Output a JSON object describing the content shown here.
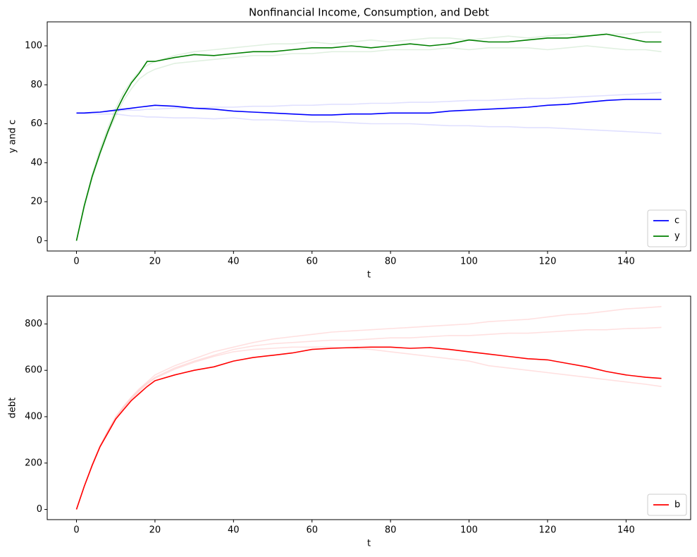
{
  "chart_data": [
    {
      "type": "line",
      "title": "Nonfinancial Income, Consumption, and Debt",
      "xlabel": "t",
      "ylabel": "y and c",
      "x": [
        0,
        2,
        4,
        6,
        8,
        10,
        12,
        14,
        16,
        18,
        20,
        25,
        30,
        35,
        40,
        45,
        50,
        55,
        60,
        65,
        70,
        75,
        80,
        85,
        90,
        95,
        100,
        105,
        110,
        115,
        120,
        125,
        130,
        135,
        140,
        145,
        149
      ],
      "series": [
        {
          "name": "c",
          "color": "#0000ff",
          "alpha": 1,
          "values": [
            65.5,
            65.5,
            65.8,
            66,
            66.5,
            67,
            67.5,
            68,
            68.5,
            69,
            69.5,
            69,
            68,
            67.5,
            66.5,
            66,
            65.5,
            65,
            64.5,
            64.5,
            65,
            65,
            65.5,
            65.5,
            65.5,
            66.5,
            67,
            67.5,
            68,
            68.5,
            69.5,
            70,
            71,
            72,
            72.5,
            72.5,
            72.5
          ]
        },
        {
          "name": "y",
          "color": "#008000",
          "alpha": 1,
          "values": [
            0,
            18,
            33,
            45,
            56,
            66,
            74,
            81,
            86,
            92,
            92,
            94,
            95.5,
            95,
            96,
            97,
            97,
            98,
            99,
            99,
            100,
            99,
            100,
            101,
            100,
            101,
            103,
            102,
            102,
            103,
            104,
            104,
            105,
            106,
            104,
            102,
            102
          ]
        },
        {
          "color": "#0000ff",
          "alpha": 0.12,
          "values": [
            65.5,
            65.4,
            65.3,
            65,
            65,
            65,
            64.5,
            64,
            64,
            63.5,
            63.5,
            63,
            63,
            62.5,
            63,
            62,
            62,
            61.5,
            61,
            61,
            60.5,
            60,
            60,
            60,
            59.5,
            59,
            59,
            58.5,
            58.5,
            58,
            58,
            57.5,
            57,
            56.5,
            56,
            55.5,
            55
          ]
        },
        {
          "color": "#0000ff",
          "alpha": 0.12,
          "values": [
            65.5,
            65.6,
            65.8,
            66,
            66.2,
            66.5,
            66.8,
            67,
            67,
            67.5,
            67.5,
            68,
            68,
            68.5,
            68.5,
            69,
            69,
            69.5,
            69.5,
            70,
            70,
            70.5,
            70.5,
            71,
            71,
            71.5,
            72,
            72,
            72.5,
            73,
            73,
            73.5,
            74,
            74.5,
            75,
            75.5,
            76
          ]
        },
        {
          "color": "#008000",
          "alpha": 0.12,
          "values": [
            0,
            18,
            34,
            47,
            58,
            68,
            76,
            82,
            87,
            90,
            92,
            95,
            97,
            98,
            99,
            100,
            101,
            101,
            102,
            101,
            102,
            103,
            102,
            103,
            104,
            104,
            103,
            104,
            105,
            104,
            105,
            106,
            105,
            106,
            106,
            107,
            107
          ]
        },
        {
          "color": "#008000",
          "alpha": 0.12,
          "values": [
            0,
            17,
            32,
            44,
            55,
            64,
            72,
            78,
            83,
            86,
            88,
            91,
            92,
            93,
            94,
            95,
            95,
            96,
            96,
            97,
            97,
            97,
            98,
            98,
            98,
            99,
            98,
            99,
            99,
            99,
            98,
            99,
            100,
            99,
            98,
            98,
            97
          ]
        }
      ],
      "xlim": [
        -7.45,
        156.45
      ],
      "ylim": [
        -5.3,
        112.3
      ],
      "xticks": [
        0,
        20,
        40,
        60,
        80,
        100,
        120,
        140
      ],
      "yticks": [
        0,
        20,
        40,
        60,
        80,
        100
      ],
      "legend": "lower right"
    },
    {
      "type": "line",
      "xlabel": "t",
      "ylabel": "debt",
      "x": [
        0,
        2,
        4,
        6,
        8,
        10,
        12,
        14,
        16,
        18,
        20,
        25,
        30,
        35,
        40,
        45,
        50,
        55,
        60,
        65,
        70,
        75,
        80,
        85,
        90,
        95,
        100,
        105,
        110,
        115,
        120,
        125,
        130,
        135,
        140,
        145,
        149
      ],
      "series": [
        {
          "name": "b",
          "color": "#ff0000",
          "alpha": 1,
          "values": [
            0,
            100,
            190,
            270,
            330,
            390,
            430,
            470,
            500,
            530,
            555,
            580,
            600,
            615,
            640,
            655,
            665,
            675,
            690,
            695,
            698,
            700,
            700,
            695,
            698,
            690,
            680,
            670,
            660,
            650,
            645,
            630,
            615,
            595,
            580,
            570,
            565
          ]
        },
        {
          "color": "#ff0000",
          "alpha": 0.12,
          "values": [
            0,
            100,
            195,
            275,
            340,
            400,
            445,
            485,
            520,
            550,
            580,
            620,
            650,
            680,
            700,
            720,
            735,
            745,
            755,
            765,
            770,
            775,
            780,
            785,
            790,
            795,
            800,
            810,
            815,
            820,
            830,
            840,
            845,
            855,
            865,
            870,
            875
          ]
        },
        {
          "color": "#ff0000",
          "alpha": 0.12,
          "values": [
            0,
            100,
            190,
            270,
            335,
            390,
            435,
            475,
            510,
            540,
            565,
            605,
            635,
            660,
            680,
            690,
            695,
            700,
            700,
            700,
            695,
            690,
            680,
            670,
            660,
            650,
            640,
            620,
            610,
            600,
            590,
            580,
            570,
            560,
            550,
            540,
            530
          ]
        },
        {
          "color": "#ff0000",
          "alpha": 0.12,
          "values": [
            0,
            100,
            192,
            272,
            336,
            395,
            440,
            480,
            515,
            545,
            570,
            610,
            640,
            665,
            690,
            705,
            715,
            720,
            725,
            730,
            730,
            735,
            740,
            740,
            745,
            750,
            750,
            755,
            760,
            760,
            765,
            770,
            775,
            775,
            780,
            782,
            785
          ]
        }
      ],
      "xlim": [
        -7.45,
        156.45
      ],
      "ylim": [
        -44,
        920
      ],
      "xticks": [
        0,
        20,
        40,
        60,
        80,
        100,
        120,
        140
      ],
      "yticks": [
        0,
        200,
        400,
        600,
        800
      ],
      "legend": "lower right"
    }
  ]
}
